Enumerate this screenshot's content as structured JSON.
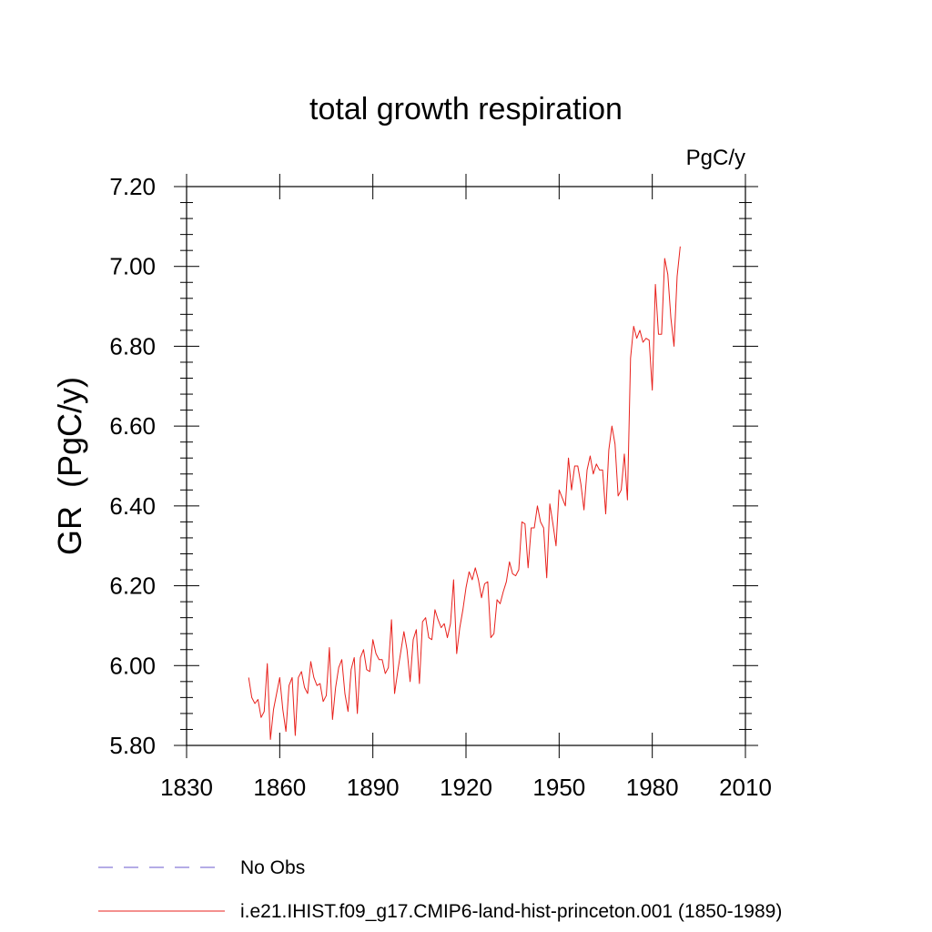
{
  "chart_data": {
    "type": "line",
    "title": "total growth respiration",
    "units_label": "PgC/y",
    "ylabel": "GR  (PgC/y)",
    "xlabel": "",
    "xlim": [
      1830,
      2010
    ],
    "ylim": [
      5.8,
      7.2
    ],
    "x_ticks": [
      1830,
      1860,
      1890,
      1920,
      1950,
      1980,
      2010
    ],
    "y_ticks": [
      5.8,
      6.0,
      6.2,
      6.4,
      6.6,
      6.8,
      7.0,
      7.2
    ],
    "x_tick_labels": [
      "1830",
      "1860",
      "1890",
      "1920",
      "1950",
      "1980",
      "2010"
    ],
    "y_tick_labels": [
      "5.80",
      "6.00",
      "6.20",
      "6.40",
      "6.60",
      "6.80",
      "7.00",
      "7.20"
    ],
    "grid": false,
    "legend_position": "bottom",
    "series": [
      {
        "name": "i.e21.IHIST.f09_g17.CMIP6-land-hist-princeton.001 (1850-1989)",
        "color": "#e8211c",
        "line_style": "solid",
        "x": [
          1850,
          1851,
          1852,
          1853,
          1854,
          1855,
          1856,
          1857,
          1858,
          1859,
          1860,
          1861,
          1862,
          1863,
          1864,
          1865,
          1866,
          1867,
          1868,
          1869,
          1870,
          1871,
          1872,
          1873,
          1874,
          1875,
          1876,
          1877,
          1878,
          1879,
          1880,
          1881,
          1882,
          1883,
          1884,
          1885,
          1886,
          1887,
          1888,
          1889,
          1890,
          1891,
          1892,
          1893,
          1894,
          1895,
          1896,
          1897,
          1898,
          1899,
          1900,
          1901,
          1902,
          1903,
          1904,
          1905,
          1906,
          1907,
          1908,
          1909,
          1910,
          1911,
          1912,
          1913,
          1914,
          1915,
          1916,
          1917,
          1918,
          1919,
          1920,
          1921,
          1922,
          1923,
          1924,
          1925,
          1926,
          1927,
          1928,
          1929,
          1930,
          1931,
          1932,
          1933,
          1934,
          1935,
          1936,
          1937,
          1938,
          1939,
          1940,
          1941,
          1942,
          1943,
          1944,
          1945,
          1946,
          1947,
          1948,
          1949,
          1950,
          1951,
          1952,
          1953,
          1954,
          1955,
          1956,
          1957,
          1958,
          1959,
          1960,
          1961,
          1962,
          1963,
          1964,
          1965,
          1966,
          1967,
          1968,
          1969,
          1970,
          1971,
          1972,
          1973,
          1974,
          1975,
          1976,
          1977,
          1978,
          1979,
          1980,
          1981,
          1982,
          1983,
          1984,
          1985,
          1986,
          1987,
          1988,
          1989
        ],
        "y": [
          5.97,
          5.92,
          5.905,
          5.915,
          5.87,
          5.885,
          6.005,
          5.815,
          5.89,
          5.93,
          5.97,
          5.89,
          5.835,
          5.95,
          5.97,
          5.825,
          5.97,
          5.985,
          5.945,
          5.93,
          6.01,
          5.97,
          5.95,
          5.955,
          5.91,
          5.925,
          6.045,
          5.865,
          5.945,
          5.995,
          6.015,
          5.93,
          5.885,
          5.99,
          6.02,
          5.88,
          6.02,
          6.04,
          5.99,
          5.985,
          6.065,
          6.03,
          6.015,
          6.015,
          5.98,
          5.995,
          6.115,
          5.93,
          5.985,
          6.035,
          6.085,
          6.04,
          5.96,
          6.065,
          6.09,
          5.955,
          6.11,
          6.12,
          6.07,
          6.065,
          6.14,
          6.115,
          6.095,
          6.105,
          6.07,
          6.105,
          6.215,
          6.03,
          6.095,
          6.14,
          6.195,
          6.235,
          6.215,
          6.245,
          6.215,
          6.17,
          6.205,
          6.21,
          6.07,
          6.08,
          6.165,
          6.155,
          6.185,
          6.21,
          6.26,
          6.23,
          6.225,
          6.24,
          6.36,
          6.355,
          6.245,
          6.345,
          6.345,
          6.4,
          6.36,
          6.345,
          6.22,
          6.405,
          6.355,
          6.3,
          6.44,
          6.42,
          6.4,
          6.52,
          6.44,
          6.5,
          6.5,
          6.455,
          6.39,
          6.49,
          6.525,
          6.48,
          6.505,
          6.49,
          6.49,
          6.38,
          6.54,
          6.6,
          6.555,
          6.425,
          6.44,
          6.53,
          6.415,
          6.77,
          6.85,
          6.82,
          6.84,
          6.81,
          6.82,
          6.815,
          6.69,
          6.955,
          6.83,
          6.83,
          7.02,
          6.98,
          6.87,
          6.8,
          6.975,
          7.05
        ]
      }
    ],
    "legend": [
      {
        "label": "No Obs",
        "color": "#6a5acd",
        "line_style": "dashed"
      },
      {
        "label": "i.e21.IHIST.f09_g17.CMIP6-land-hist-princeton.001 (1850-1989)",
        "color": "#e8211c",
        "line_style": "solid"
      }
    ]
  }
}
